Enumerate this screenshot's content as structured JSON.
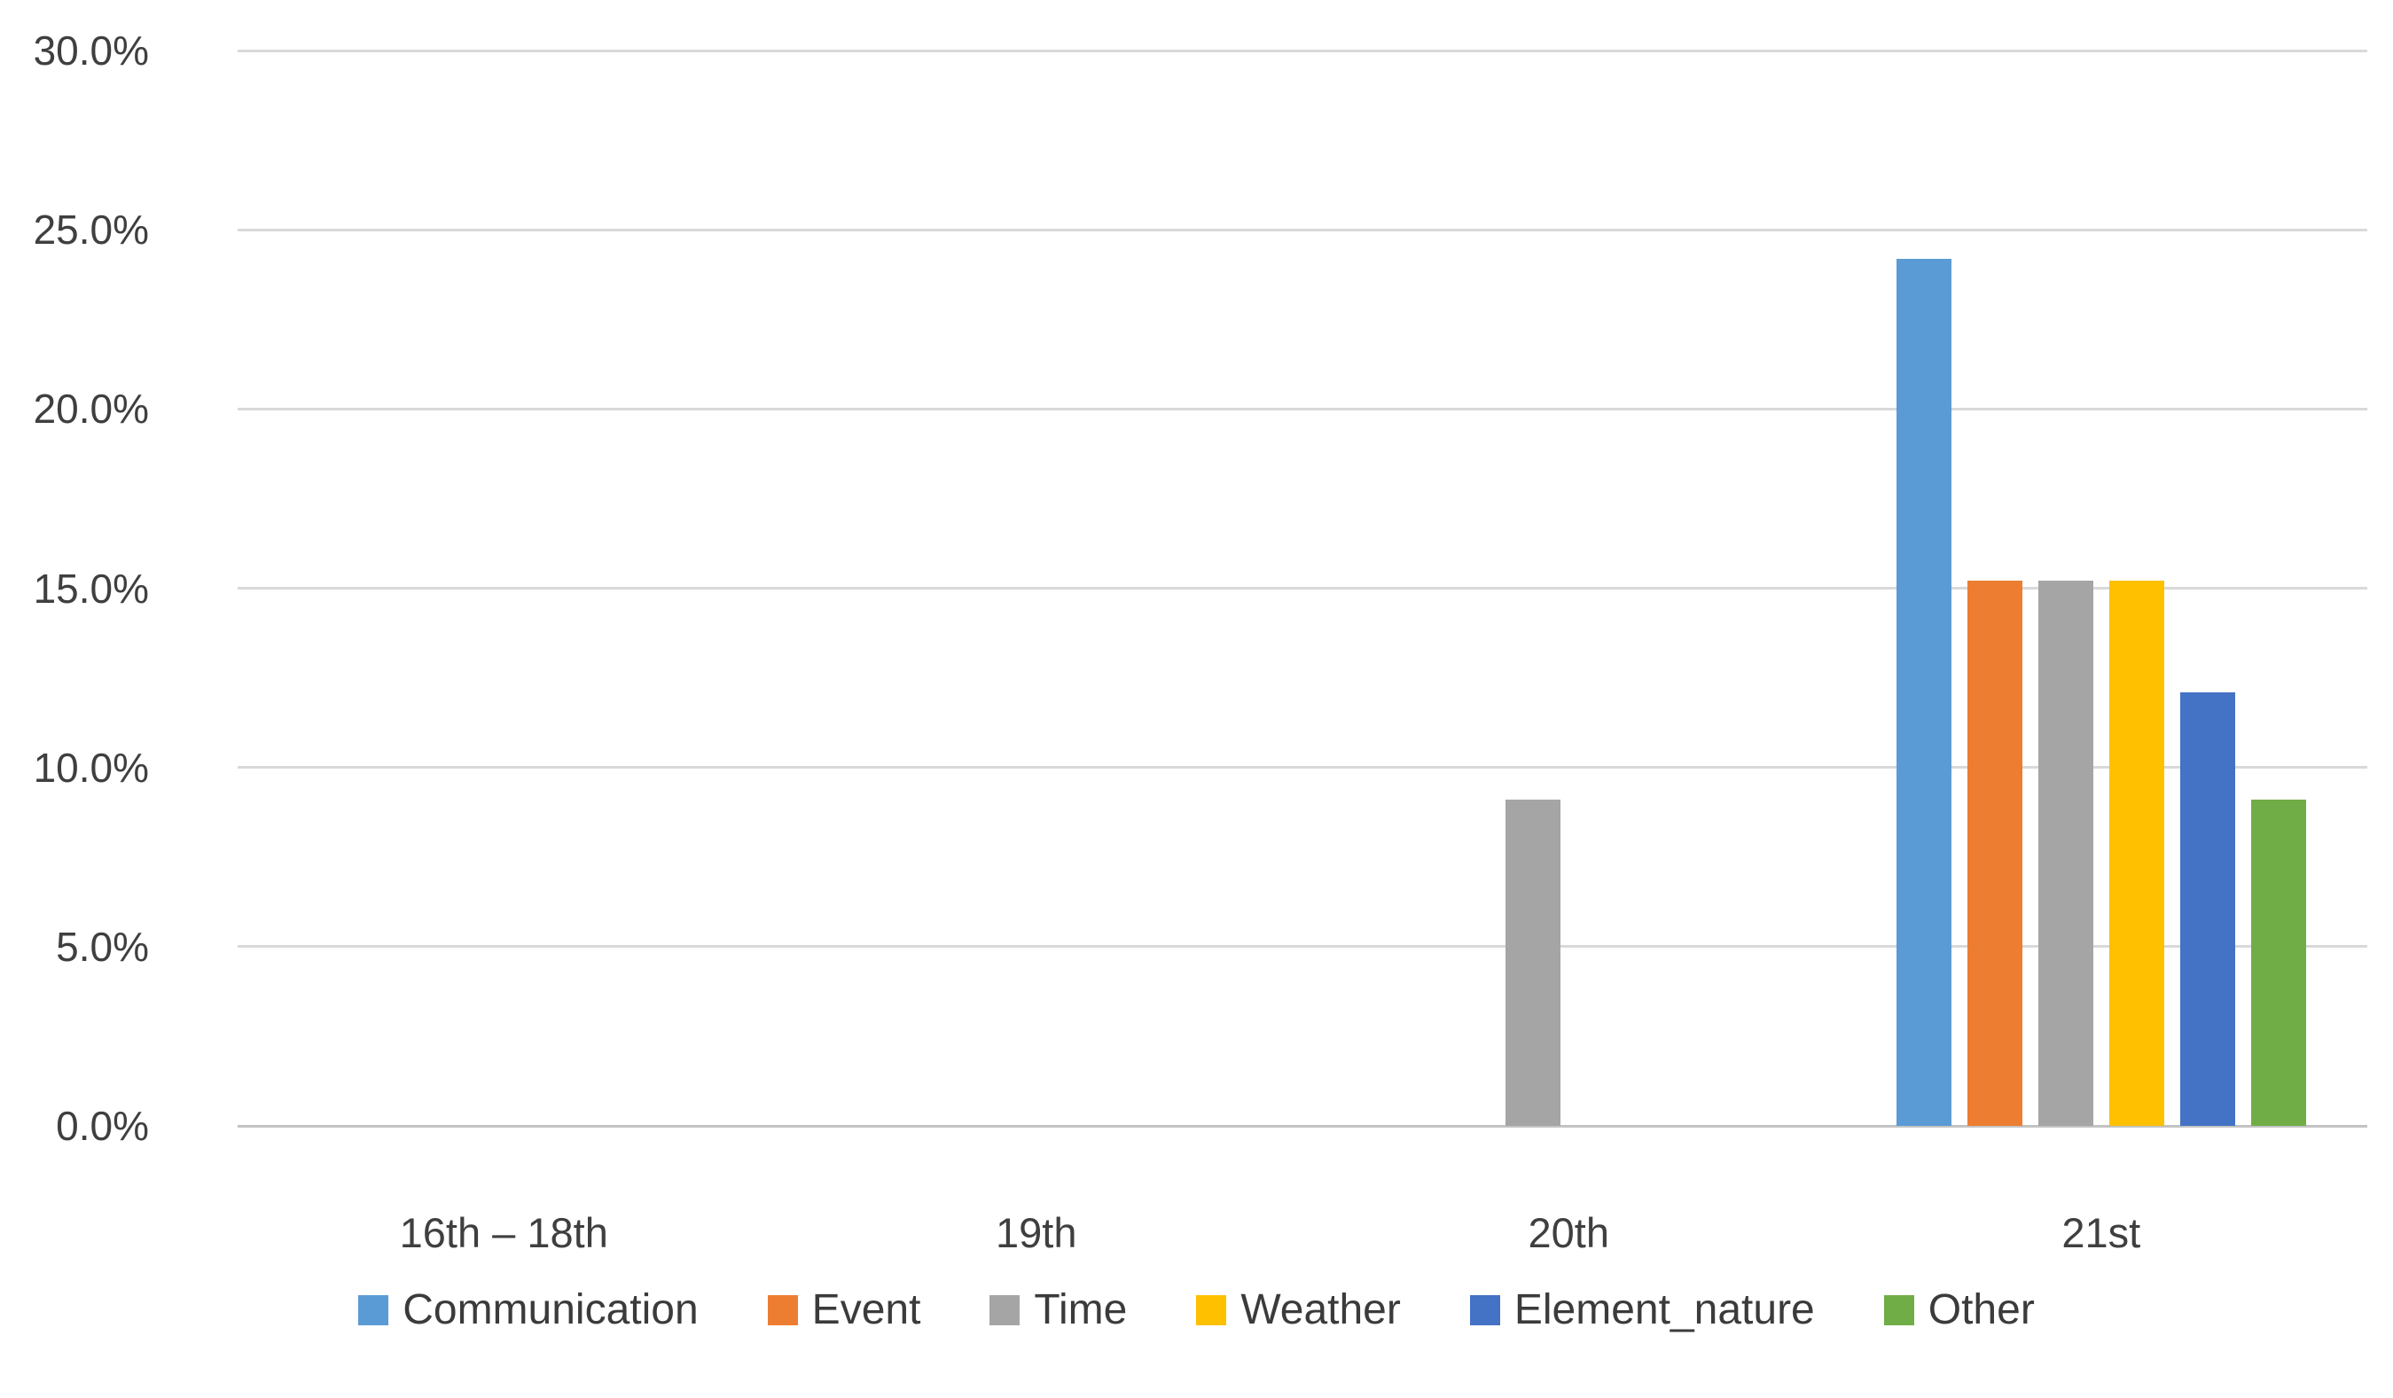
{
  "chart_data": {
    "type": "bar",
    "title": "",
    "categories": [
      "16th – 18th",
      "19th",
      "20th",
      "21st"
    ],
    "series": [
      {
        "name": "Communication",
        "color": "#5B9BD5",
        "values": [
          0,
          0,
          0,
          24.2
        ]
      },
      {
        "name": "Event",
        "color": "#ED7D31",
        "values": [
          0,
          0,
          0,
          15.2
        ]
      },
      {
        "name": "Time",
        "color": "#A5A5A5",
        "values": [
          0,
          0,
          9.1,
          15.2
        ]
      },
      {
        "name": "Weather",
        "color": "#FFC000",
        "values": [
          0,
          0,
          0,
          15.2
        ]
      },
      {
        "name": "Element_nature",
        "color": "#4472C4",
        "values": [
          0,
          0,
          0,
          12.1
        ]
      },
      {
        "name": "Other",
        "color": "#70AD47",
        "values": [
          0,
          0,
          0,
          9.1
        ]
      }
    ],
    "y_axis": {
      "unit": "%",
      "min": 0,
      "max": 30,
      "step": 5,
      "ticks": [
        {
          "value": 30,
          "label": "30.0%"
        },
        {
          "value": 25,
          "label": "25.0%"
        },
        {
          "value": 20,
          "label": "20.0%"
        },
        {
          "value": 15,
          "label": "15.0%"
        },
        {
          "value": 10,
          "label": "10.0%"
        },
        {
          "value": 5,
          "label": "5.0%"
        },
        {
          "value": 0,
          "label": "0.0%"
        }
      ]
    },
    "x_axis": {
      "label": ""
    },
    "legend_position": "bottom",
    "grid": true
  },
  "styles": {
    "background": "#ffffff",
    "gridline_color": "#d9d9d9",
    "baseline_color": "#c3c3c3",
    "axis_text_color": "#3f3f3f",
    "legend_text_color": "#3b3b3b"
  }
}
